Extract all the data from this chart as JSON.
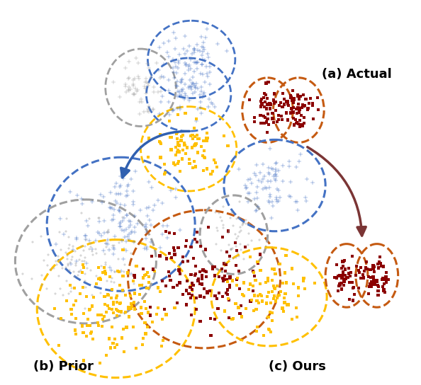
{
  "fig_width": 5.94,
  "fig_height": 5.44,
  "dpi": 100,
  "colors": {
    "blue": "#4472C4",
    "gray": "#A0A0A0",
    "yellow": "#FFC000",
    "dark_red": "#8B0000",
    "orange": "#C55A11",
    "arrow_blue": "#3060B0",
    "arrow_red": "#7B3535"
  },
  "labels": {
    "a": "(a) Actual",
    "b": "(b) Prior",
    "c": "(c) Ours"
  }
}
